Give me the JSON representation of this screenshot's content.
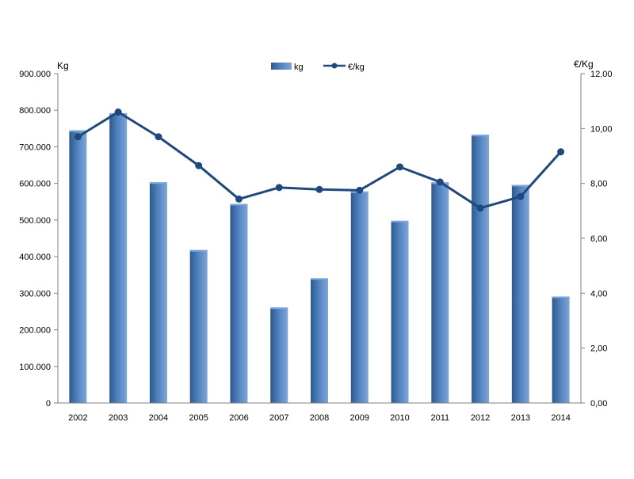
{
  "chart_data": {
    "type": "bar",
    "categories": [
      "2002",
      "2003",
      "2004",
      "2005",
      "2006",
      "2007",
      "2008",
      "2009",
      "2010",
      "2011",
      "2012",
      "2013",
      "2014"
    ],
    "series": [
      {
        "name": "kg",
        "type": "bar",
        "axis": "left",
        "values": [
          745000,
          792000,
          603000,
          418000,
          544000,
          261000,
          341000,
          578000,
          498000,
          603000,
          733000,
          596000,
          291000
        ]
      },
      {
        "name": "€/kg",
        "type": "line",
        "axis": "right",
        "values": [
          9.7,
          10.6,
          9.7,
          8.65,
          7.43,
          7.85,
          7.78,
          7.75,
          8.6,
          8.05,
          7.1,
          7.52,
          9.15
        ]
      }
    ],
    "y_left": {
      "label": "Kg",
      "range": [
        0,
        900000
      ],
      "ticks": [
        "0",
        "100.000",
        "200.000",
        "300.000",
        "400.000",
        "500.000",
        "600.000",
        "700.000",
        "800.000",
        "900.000"
      ]
    },
    "y_right": {
      "label": "€/Kg",
      "range": [
        0,
        12
      ],
      "ticks": [
        "0,00",
        "2,00",
        "4,00",
        "6,00",
        "8,00",
        "10,00",
        "12,00"
      ]
    },
    "legend": {
      "placement": "top-center",
      "items": [
        "kg",
        "€/kg"
      ]
    },
    "grid": false,
    "colors": {
      "bar": "#4f81bd",
      "bar_dark": "#2c5a8f",
      "bar_light": "#7ea6da",
      "line": "#1f497d",
      "axis": "#808080"
    }
  }
}
